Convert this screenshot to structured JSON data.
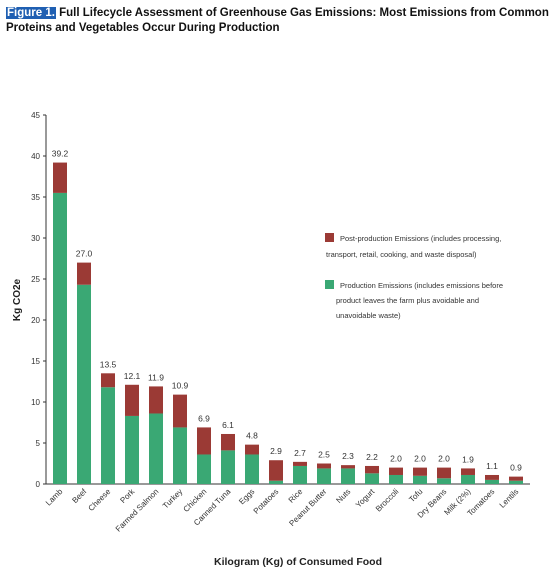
{
  "figure": {
    "label": "Figure 1.",
    "title": " Full Lifecycle Assessment of Greenhouse Gas Emissions: Most Emissions from Common Proteins and Vegetables Occur During Production"
  },
  "colors": {
    "production": "#3aa874",
    "post_production": "#9b3a35",
    "figure_label_bg": "#1f5fb2"
  },
  "chart_data": {
    "type": "bar",
    "stacked": true,
    "xlabel": "Kilogram (Kg) of Consumed Food",
    "ylabel": "Kg CO2e",
    "ylim": [
      0,
      45
    ],
    "yticks": [
      0,
      5,
      10,
      15,
      20,
      25,
      30,
      35,
      40,
      45
    ],
    "grid": false,
    "legend_position": "right",
    "categories": [
      "Lamb",
      "Beef",
      "Cheese",
      "Pork",
      "Farmed Salmon",
      "Turkey",
      "Chicken",
      "Canned Tuna",
      "Eggs",
      "Potatoes",
      "Rice",
      "Peanut Butter",
      "Nuts",
      "Yogurt",
      "Broccoli",
      "Tofu",
      "Dry Beans",
      "Milk (2%)",
      "Tomatoes",
      "Lentils"
    ],
    "totals": [
      39.2,
      27.0,
      13.5,
      12.1,
      11.9,
      10.9,
      6.9,
      6.1,
      4.8,
      2.9,
      2.7,
      2.5,
      2.3,
      2.2,
      2.0,
      2.0,
      2.0,
      1.9,
      1.1,
      0.9
    ],
    "total_labels": [
      "39.2",
      "27.0",
      "13.5",
      "12.1",
      "11.9",
      "10.9",
      "6.9",
      "6.1",
      "4.8",
      "2.9",
      "2.7",
      "2.5",
      "2.3",
      "2.2",
      "2.0",
      "2.0",
      "2.0",
      "1.9",
      "1.1",
      "0.9"
    ],
    "series": [
      {
        "name": "Production Emissions (includes emissions before product leaves the farm plus avoidable and unavoidable waste)",
        "legend_lines": [
          "Production Emissions (includes emissions before",
          "product leaves the farm plus avoidable and",
          "unavoidable waste)"
        ],
        "values": [
          35.5,
          24.3,
          11.8,
          8.3,
          8.6,
          6.9,
          3.6,
          4.1,
          3.6,
          0.4,
          2.2,
          1.9,
          1.9,
          1.3,
          1.1,
          1.0,
          0.7,
          1.1,
          0.5,
          0.4
        ]
      },
      {
        "name": "Post-production Emissions (includes processing, transport, retail, cooking, and waste disposal)",
        "legend_lines": [
          "Post-production Emissions (includes processing,",
          "transport, retail, cooking, and waste disposal)"
        ],
        "values": [
          3.7,
          2.7,
          1.7,
          3.8,
          3.3,
          4.0,
          3.3,
          2.0,
          1.2,
          2.5,
          0.5,
          0.6,
          0.4,
          0.9,
          0.9,
          1.0,
          1.3,
          0.8,
          0.6,
          0.5
        ]
      }
    ]
  }
}
